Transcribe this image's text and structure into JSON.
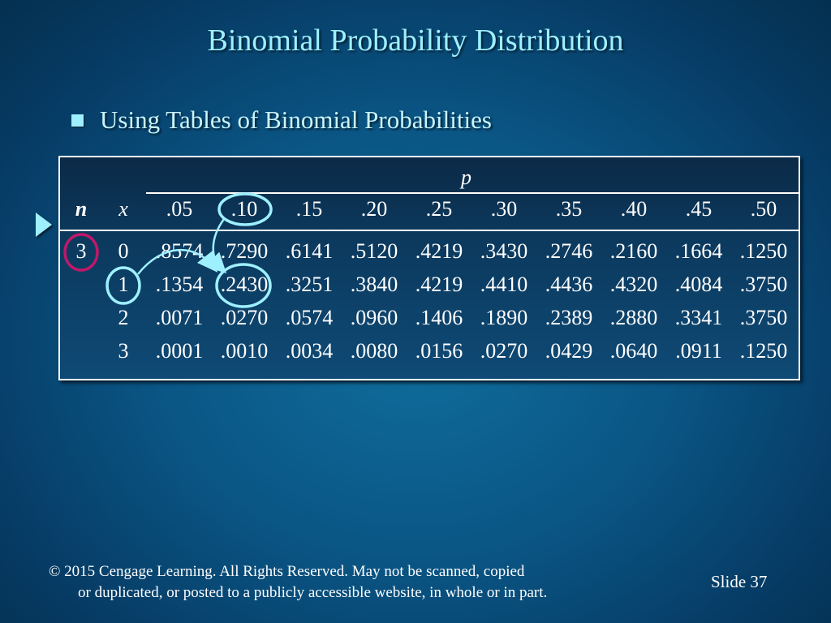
{
  "title": "Binomial Probability Distribution",
  "bullet": "Using Tables of Binomial Probabilities",
  "table": {
    "p_label": "p",
    "n_label": "n",
    "x_label": "x",
    "p_headers": [
      ".05",
      ".10",
      ".15",
      ".20",
      ".25",
      ".30",
      ".35",
      ".40",
      ".45",
      ".50"
    ],
    "n_value": "3",
    "rows": [
      {
        "x": "0",
        "values": [
          ".8574",
          ".7290",
          ".6141",
          ".5120",
          ".4219",
          ".3430",
          ".2746",
          ".2160",
          ".1664",
          ".1250"
        ]
      },
      {
        "x": "1",
        "values": [
          ".1354",
          ".2430",
          ".3251",
          ".3840",
          ".4219",
          ".4410",
          ".4436",
          ".4320",
          ".4084",
          ".3750"
        ]
      },
      {
        "x": "2",
        "values": [
          ".0071",
          ".0270",
          ".0574",
          ".0960",
          ".1406",
          ".1890",
          ".2389",
          ".2880",
          ".3341",
          ".3750"
        ]
      },
      {
        "x": "3",
        "values": [
          ".0001",
          ".0010",
          ".0034",
          ".0080",
          ".0156",
          ".0270",
          ".0429",
          ".0640",
          ".0911",
          ".1250"
        ]
      }
    ]
  },
  "footer": {
    "line1": "© 2015  Cengage Learning.  All Rights Reserved.  May not be scanned, copied",
    "line2": "or duplicated, or posted to a publicly accessible website, in whole or in part."
  },
  "slide_label": "Slide  37",
  "colors": {
    "title": "#9ef0ff",
    "highlight_circle": "#9ef0ff",
    "n_circle": "#c0186a",
    "background": "#0a5584"
  }
}
